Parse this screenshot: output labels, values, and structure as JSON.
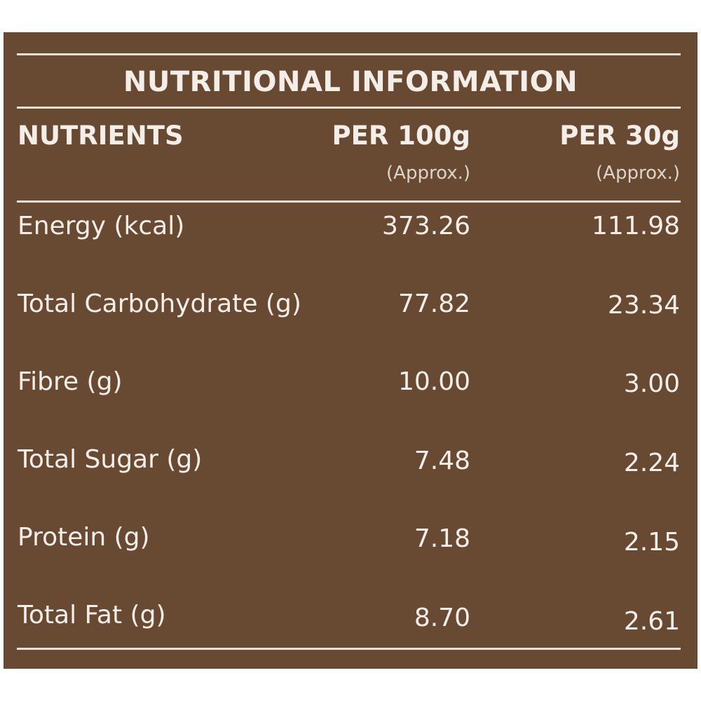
{
  "title": "NUTRITIONAL INFORMATION",
  "columns": {
    "nutrients": "NUTRIENTS",
    "per100": "PER 100g",
    "per100_note": "(Approx.)",
    "per30": "PER 30g",
    "per30_note": "(Approx.)"
  },
  "rows": [
    {
      "label": "Energy (kcal)",
      "per100": "373.26",
      "per30": "111.98"
    },
    {
      "label": "Total Carbohydrate (g)",
      "per100": "77.82",
      "per30": "23.34"
    },
    {
      "label": "Fibre (g)",
      "per100": "10.00",
      "per30": "3.00"
    },
    {
      "label": "Total Sugar (g)",
      "per100": "7.48",
      "per30": "2.24"
    },
    {
      "label": "Protein (g)",
      "per100": "7.18",
      "per30": "2.15"
    },
    {
      "label": "Total Fat (g)",
      "per100": "8.70",
      "per30": "2.61"
    }
  ]
}
